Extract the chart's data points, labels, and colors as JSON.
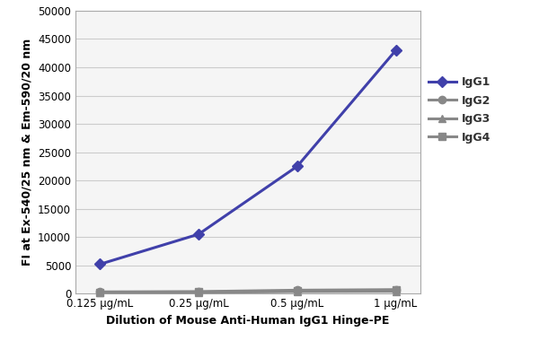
{
  "x_labels": [
    "0.125 μg/mL",
    "0.25 μg/mL",
    "0.5 μg/mL",
    "1 μg/mL"
  ],
  "x_positions": [
    0,
    1,
    2,
    3
  ],
  "series": [
    {
      "name": "IgG1",
      "values": [
        5200,
        10500,
        22500,
        43000
      ],
      "color": "#4040aa",
      "marker": "D",
      "linewidth": 2.2,
      "markersize": 6,
      "zorder": 5
    },
    {
      "name": "IgG2",
      "values": [
        300,
        350,
        600,
        700
      ],
      "color": "#888888",
      "marker": "o",
      "linewidth": 2.2,
      "markersize": 6,
      "zorder": 4
    },
    {
      "name": "IgG3",
      "values": [
        200,
        200,
        350,
        400
      ],
      "color": "#888888",
      "marker": "^",
      "linewidth": 2.2,
      "markersize": 6,
      "zorder": 3
    },
    {
      "name": "IgG4",
      "values": [
        250,
        280,
        450,
        600
      ],
      "color": "#888888",
      "marker": "s",
      "linewidth": 2.2,
      "markersize": 6,
      "zorder": 2
    }
  ],
  "ylabel": "FI at Ex-540/25 nm & Em-590/20 nm",
  "xlabel": "Dilution of Mouse Anti-Human IgG1 Hinge-PE",
  "ylim": [
    0,
    50000
  ],
  "yticks": [
    0,
    5000,
    10000,
    15000,
    20000,
    25000,
    30000,
    35000,
    40000,
    45000,
    50000
  ],
  "plot_bg": "#f5f5f5",
  "fig_bg": "#ffffff",
  "grid_color": "#cccccc",
  "axis_label_fontsize": 9,
  "tick_fontsize": 8.5,
  "legend_fontsize": 9
}
